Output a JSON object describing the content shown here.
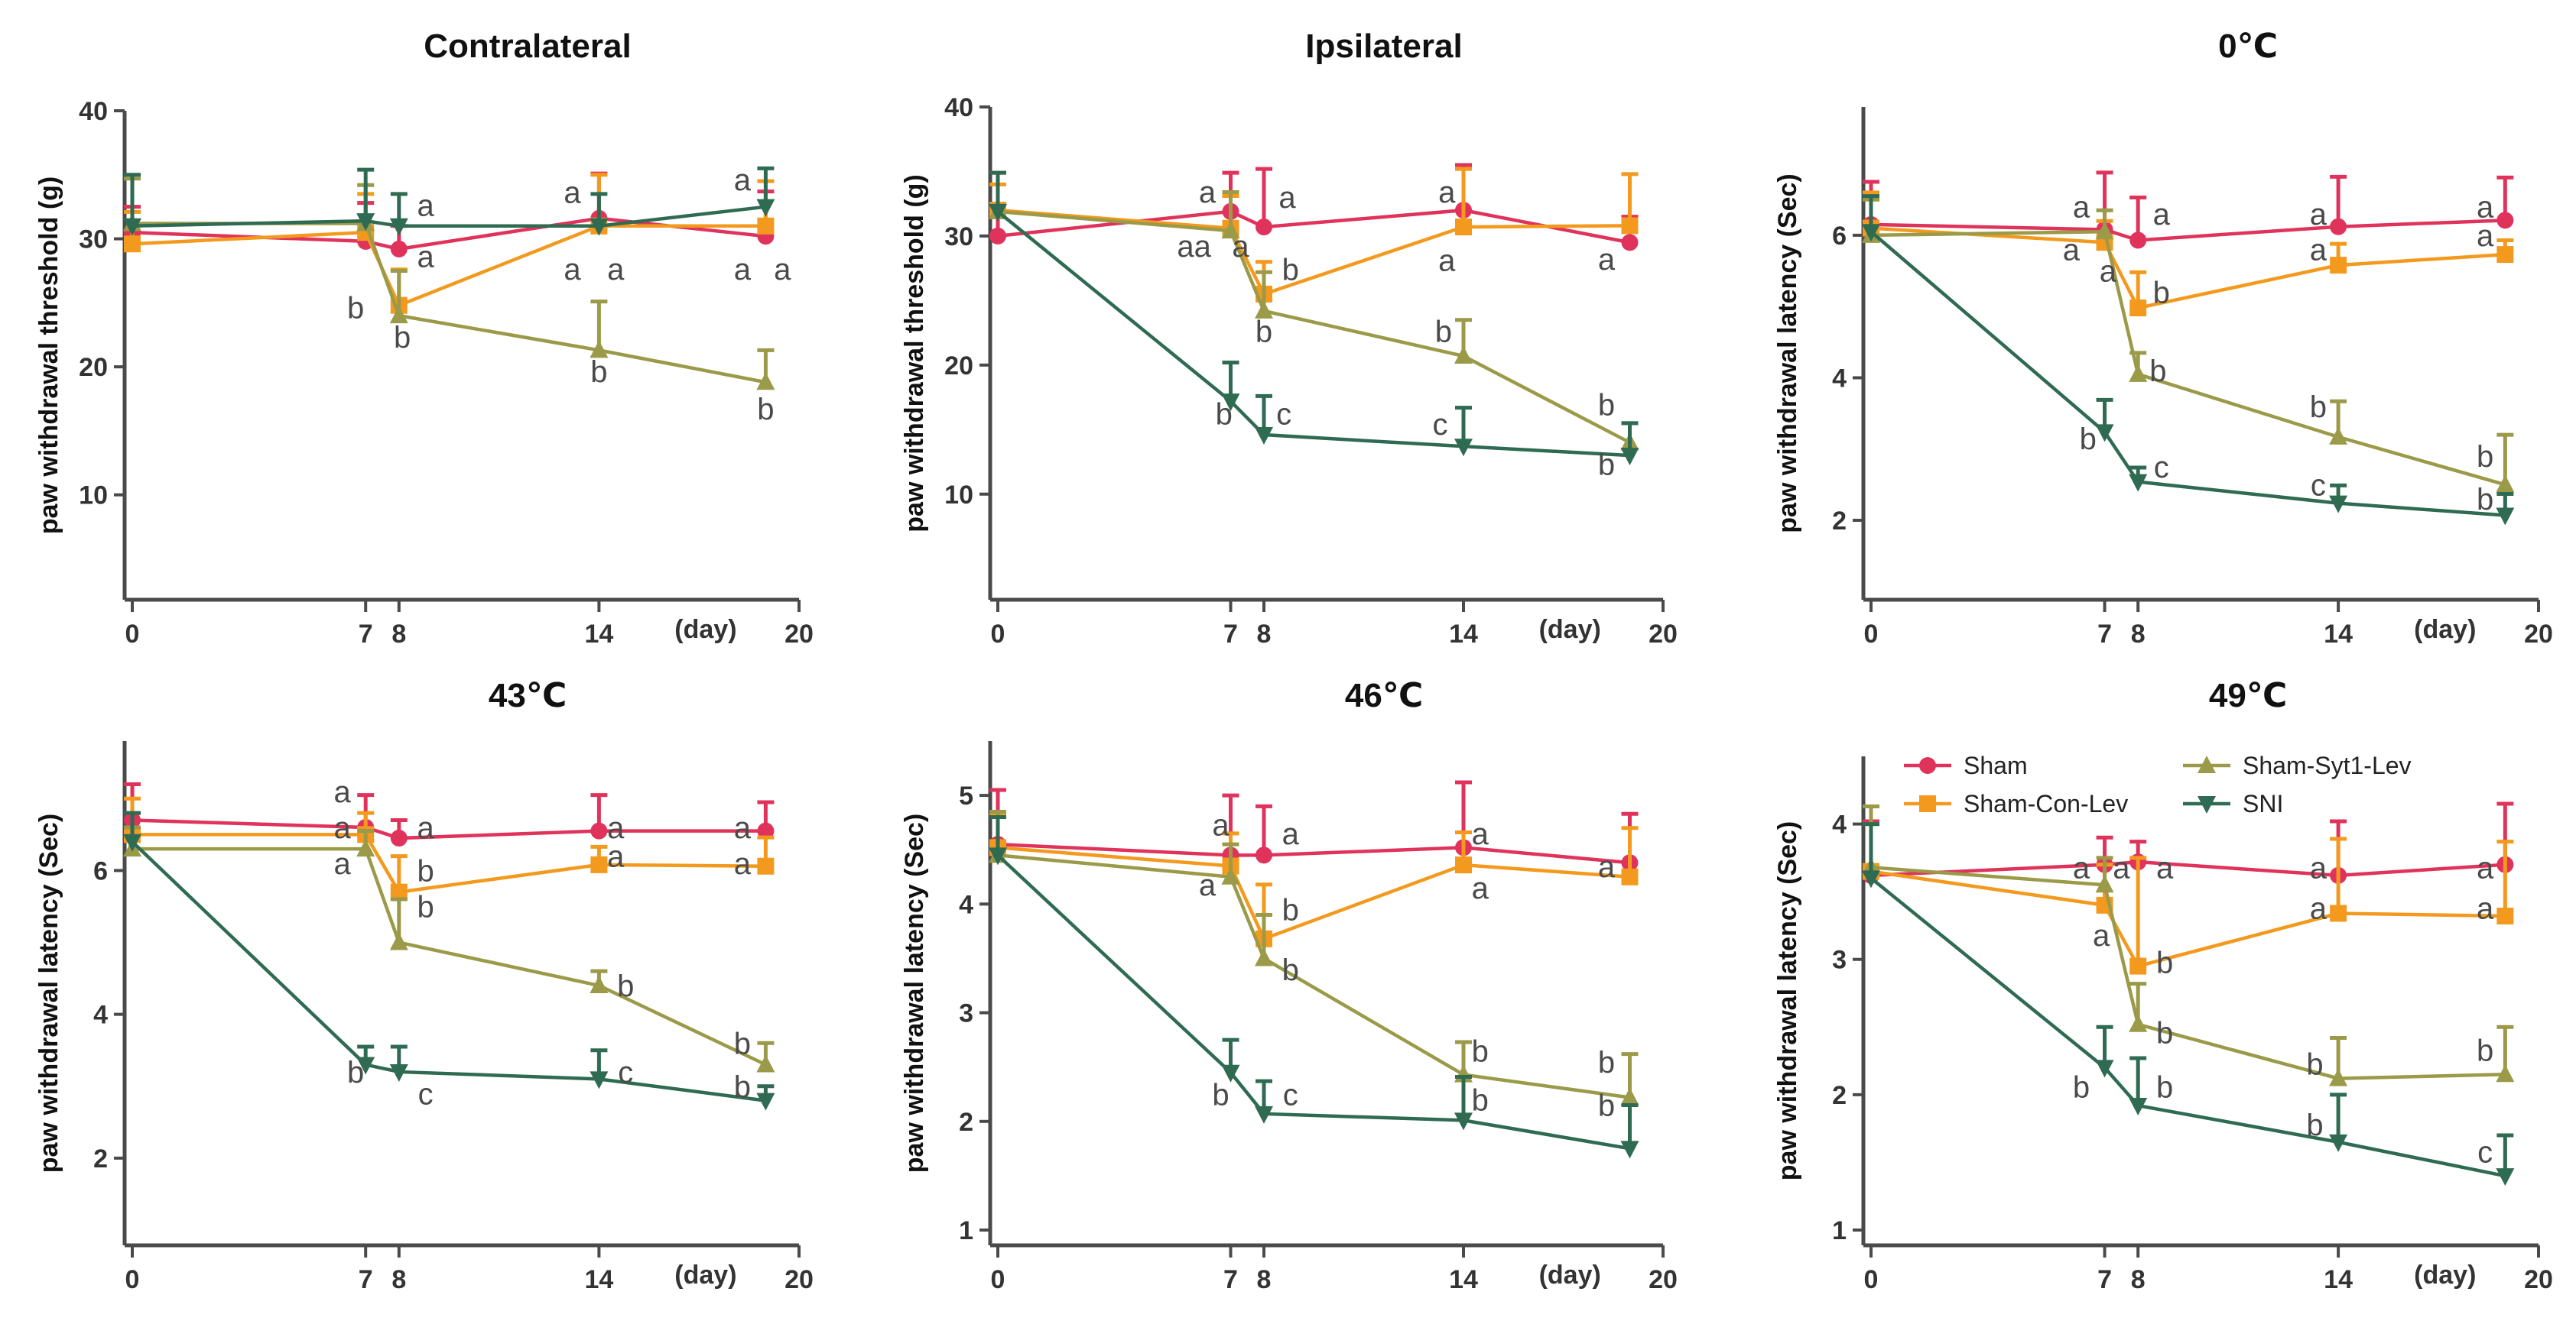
{
  "colors": {
    "Sham": "#E0335B",
    "Sham-Con-Lev": "#F39A1E",
    "Sham-Syt1-Lev": "#9A9A48",
    "SNI": "#2F6B52",
    "axis": "#4a4a4a"
  },
  "legend": [
    "Sham",
    "Sham-Con-Lev",
    "Sham-Syt1-Lev",
    "SNI"
  ],
  "chart_data": [
    {
      "type": "line",
      "title": "Contralateral",
      "ylabel": "paw withdrawal threshold (g)",
      "xlabel": "(day)",
      "x_ticks": [
        0,
        7,
        8,
        14,
        20
      ],
      "xlim": [
        0,
        20
      ],
      "ylim": [
        3,
        40
      ],
      "y_ticks": [
        10,
        20,
        30,
        40
      ],
      "series": [
        {
          "name": "Sham",
          "x": [
            0,
            7,
            8,
            14,
            19
          ],
          "values": [
            30.5,
            29.8,
            29.2,
            31.6,
            30.2
          ],
          "err": [
            2.0,
            3.0,
            1.8,
            3.5,
            3.5
          ]
        },
        {
          "name": "Sham-Con-Lev",
          "x": [
            0,
            7,
            8,
            14,
            19
          ],
          "values": [
            29.6,
            30.5,
            24.8,
            31.0,
            31.0
          ],
          "err": [
            2.5,
            3.0,
            2.8,
            4.0,
            3.5
          ]
        },
        {
          "name": "Sham-Syt1-Lev",
          "x": [
            0,
            7,
            8,
            14,
            19
          ],
          "values": [
            31.2,
            31.2,
            24.0,
            21.3,
            18.8
          ],
          "err": [
            3.5,
            3.0,
            3.5,
            3.8,
            2.5
          ]
        },
        {
          "name": "SNI",
          "x": [
            0,
            7,
            8,
            14,
            19
          ],
          "values": [
            31.0,
            31.4,
            31.0,
            31.0,
            32.5
          ],
          "err": [
            4.0,
            4.0,
            2.5,
            2.5,
            3.0
          ]
        }
      ],
      "annotations": [
        {
          "text": "a",
          "x": 8.8,
          "y": 31.8
        },
        {
          "text": "a",
          "x": 8.8,
          "y": 27.8
        },
        {
          "text": "b",
          "x": 6.7,
          "y": 23.8
        },
        {
          "text": "b",
          "x": 8.1,
          "y": 21.5
        },
        {
          "text": "a",
          "x": 13.2,
          "y": 32.8
        },
        {
          "text": "a",
          "x": 13.2,
          "y": 26.8
        },
        {
          "text": "a",
          "x": 14.5,
          "y": 26.8
        },
        {
          "text": "b",
          "x": 14.0,
          "y": 18.8
        },
        {
          "text": "a",
          "x": 18.3,
          "y": 33.8
        },
        {
          "text": "a",
          "x": 18.3,
          "y": 26.8
        },
        {
          "text": "a",
          "x": 19.5,
          "y": 26.8
        },
        {
          "text": "b",
          "x": 19.0,
          "y": 15.9
        }
      ]
    },
    {
      "type": "line",
      "title": "Ipsilateral",
      "ylabel": "paw withdrawal threshold (g)",
      "xlabel": "(day)",
      "x_ticks": [
        0,
        7,
        8,
        14,
        20
      ],
      "xlim": [
        0,
        20
      ],
      "ylim": [
        3,
        40
      ],
      "y_ticks": [
        10,
        20,
        30,
        40
      ],
      "series": [
        {
          "name": "Sham",
          "x": [
            0,
            7,
            8,
            14,
            19
          ],
          "values": [
            30.0,
            31.9,
            30.7,
            32.0,
            29.5
          ],
          "err": [
            2.5,
            3.0,
            4.5,
            3.5,
            2.0
          ]
        },
        {
          "name": "Sham-Con-Lev",
          "x": [
            0,
            7,
            8,
            14,
            19
          ],
          "values": [
            32.0,
            30.6,
            25.5,
            30.7,
            30.8
          ],
          "err": [
            2.0,
            2.5,
            2.5,
            4.5,
            4.0
          ]
        },
        {
          "name": "Sham-Syt1-Lev",
          "x": [
            0,
            7,
            8,
            14,
            19
          ],
          "values": [
            31.9,
            30.4,
            24.2,
            20.7,
            14.0
          ],
          "err": [
            3.0,
            3.0,
            3.0,
            2.8,
            1.5
          ]
        },
        {
          "name": "SNI",
          "x": [
            0,
            7,
            8,
            14,
            19
          ],
          "values": [
            31.9,
            17.2,
            14.6,
            13.7,
            13.0
          ],
          "err": [
            3.0,
            3.0,
            3.0,
            3.0,
            2.5
          ]
        }
      ],
      "annotations": [
        {
          "text": "a",
          "x": 6.3,
          "y": 32.6
        },
        {
          "text": "aa",
          "x": 5.9,
          "y": 28.4
        },
        {
          "text": "a",
          "x": 7.3,
          "y": 28.4
        },
        {
          "text": "a",
          "x": 8.7,
          "y": 32.2
        },
        {
          "text": "b",
          "x": 8.8,
          "y": 26.6
        },
        {
          "text": "b",
          "x": 8.0,
          "y": 21.8
        },
        {
          "text": "a",
          "x": 13.5,
          "y": 32.6
        },
        {
          "text": "a",
          "x": 13.5,
          "y": 27.3
        },
        {
          "text": "b",
          "x": 13.4,
          "y": 21.8
        },
        {
          "text": "c",
          "x": 13.3,
          "y": 14.6
        },
        {
          "text": "a",
          "x": 18.3,
          "y": 27.4
        },
        {
          "text": "b",
          "x": 18.3,
          "y": 16.1
        },
        {
          "text": "b",
          "x": 18.3,
          "y": 11.5
        },
        {
          "text": "b",
          "x": 6.8,
          "y": 15.4
        },
        {
          "text": "c",
          "x": 8.6,
          "y": 15.4
        }
      ]
    },
    {
      "type": "line",
      "title": "0℃",
      "ylabel": "paw withdrawal latency (Sec)",
      "xlabel": "(day)",
      "x_ticks": [
        0,
        7,
        8,
        14,
        20
      ],
      "xlim": [
        0,
        20
      ],
      "ylim": [
        1.1,
        7.8
      ],
      "y_ticks": [
        2,
        4,
        6
      ],
      "series": [
        {
          "name": "Sham",
          "x": [
            0,
            7,
            8,
            14,
            19
          ],
          "values": [
            6.15,
            6.08,
            5.93,
            6.12,
            6.21
          ],
          "err": [
            0.6,
            0.8,
            0.6,
            0.7,
            0.6
          ]
        },
        {
          "name": "Sham-Con-Lev",
          "x": [
            0,
            7,
            8,
            14,
            19
          ],
          "values": [
            6.1,
            5.9,
            4.98,
            5.58,
            5.73
          ],
          "err": [
            0.5,
            0.3,
            0.5,
            0.3,
            0.2
          ]
        },
        {
          "name": "Sham-Syt1-Lev",
          "x": [
            0,
            7,
            8,
            14,
            19
          ],
          "values": [
            6.0,
            6.05,
            4.05,
            3.17,
            2.5
          ],
          "err": [
            0.5,
            0.3,
            0.3,
            0.5,
            0.7
          ]
        },
        {
          "name": "SNI",
          "x": [
            0,
            7,
            8,
            14,
            19
          ],
          "values": [
            6.05,
            3.24,
            2.54,
            2.24,
            2.07
          ],
          "err": [
            0.5,
            0.45,
            0.2,
            0.25,
            0.3
          ]
        }
      ],
      "annotations": [
        {
          "text": "a",
          "x": 6.3,
          "y": 6.25
        },
        {
          "text": "a",
          "x": 6.0,
          "y": 5.65
        },
        {
          "text": "a",
          "x": 7.1,
          "y": 5.35
        },
        {
          "text": "a",
          "x": 8.7,
          "y": 6.15
        },
        {
          "text": "b",
          "x": 8.7,
          "y": 5.05
        },
        {
          "text": "b",
          "x": 8.6,
          "y": 3.95
        },
        {
          "text": "a",
          "x": 13.4,
          "y": 6.15
        },
        {
          "text": "a",
          "x": 13.4,
          "y": 5.65
        },
        {
          "text": "b",
          "x": 13.4,
          "y": 3.45
        },
        {
          "text": "c",
          "x": 13.4,
          "y": 2.35
        },
        {
          "text": "a",
          "x": 18.4,
          "y": 6.25
        },
        {
          "text": "a",
          "x": 18.4,
          "y": 5.85
        },
        {
          "text": "b",
          "x": 18.4,
          "y": 2.75
        },
        {
          "text": "b",
          "x": 18.4,
          "y": 2.15
        },
        {
          "text": "b",
          "x": 6.5,
          "y": 3.0
        },
        {
          "text": "c",
          "x": 8.7,
          "y": 2.6
        }
      ]
    },
    {
      "type": "line",
      "title": "43℃",
      "ylabel": "paw withdrawal latency (Sec)",
      "xlabel": "(day)",
      "x_ticks": [
        0,
        7,
        8,
        14,
        20
      ],
      "xlim": [
        0,
        20
      ],
      "ylim": [
        1,
        7.8
      ],
      "y_ticks": [
        2,
        4,
        6
      ],
      "series": [
        {
          "name": "Sham",
          "x": [
            0,
            7,
            8,
            14,
            19
          ],
          "values": [
            6.7,
            6.6,
            6.45,
            6.55,
            6.55
          ],
          "err": [
            0.5,
            0.45,
            0.25,
            0.5,
            0.4
          ]
        },
        {
          "name": "Sham-Con-Lev",
          "x": [
            0,
            7,
            8,
            14,
            19
          ],
          "values": [
            6.5,
            6.5,
            5.7,
            6.08,
            6.06
          ],
          "err": [
            0.5,
            0.3,
            0.5,
            0.25,
            0.4
          ]
        },
        {
          "name": "Sham-Syt1-Lev",
          "x": [
            0,
            7,
            8,
            14,
            19
          ],
          "values": [
            6.3,
            6.3,
            5.0,
            4.4,
            3.3
          ],
          "err": [
            0.3,
            0.25,
            0.6,
            0.2,
            0.3
          ]
        },
        {
          "name": "SNI",
          "x": [
            0,
            7,
            8,
            14,
            19
          ],
          "values": [
            6.4,
            3.3,
            3.2,
            3.1,
            2.8
          ],
          "err": [
            0.4,
            0.25,
            0.35,
            0.4,
            0.2
          ]
        }
      ],
      "annotations": [
        {
          "text": "a",
          "x": 6.3,
          "y": 6.95
        },
        {
          "text": "a",
          "x": 6.3,
          "y": 6.45
        },
        {
          "text": "a",
          "x": 6.3,
          "y": 5.95
        },
        {
          "text": "a",
          "x": 8.8,
          "y": 6.45
        },
        {
          "text": "b",
          "x": 8.8,
          "y": 5.85
        },
        {
          "text": "b",
          "x": 8.8,
          "y": 5.35
        },
        {
          "text": "a",
          "x": 14.5,
          "y": 6.45
        },
        {
          "text": "a",
          "x": 14.5,
          "y": 6.05
        },
        {
          "text": "b",
          "x": 14.8,
          "y": 4.25
        },
        {
          "text": "c",
          "x": 14.8,
          "y": 3.05
        },
        {
          "text": "a",
          "x": 18.3,
          "y": 6.45
        },
        {
          "text": "a",
          "x": 18.3,
          "y": 5.95
        },
        {
          "text": "b",
          "x": 18.3,
          "y": 3.45
        },
        {
          "text": "b",
          "x": 18.3,
          "y": 2.85
        },
        {
          "text": "b",
          "x": 6.7,
          "y": 3.05
        },
        {
          "text": "c",
          "x": 8.8,
          "y": 2.75
        }
      ]
    },
    {
      "type": "line",
      "title": "46℃",
      "ylabel": "paw withdrawal latency (Sec)",
      "xlabel": "(day)",
      "x_ticks": [
        0,
        7,
        8,
        14,
        20
      ],
      "xlim": [
        0,
        20
      ],
      "ylim": [
        1,
        5.5
      ],
      "y_ticks": [
        1,
        2,
        3,
        4,
        5
      ],
      "series": [
        {
          "name": "Sham",
          "x": [
            0,
            7,
            8,
            14,
            19
          ],
          "values": [
            4.55,
            4.45,
            4.45,
            4.52,
            4.38
          ],
          "err": [
            0.5,
            0.55,
            0.45,
            0.6,
            0.45
          ]
        },
        {
          "name": "Sham-Con-Lev",
          "x": [
            0,
            7,
            8,
            14,
            19
          ],
          "values": [
            4.52,
            4.35,
            3.68,
            4.36,
            4.25
          ],
          "err": [
            0.3,
            0.3,
            0.5,
            0.3,
            0.45
          ]
        },
        {
          "name": "Sham-Syt1-Lev",
          "x": [
            0,
            7,
            8,
            14,
            19
          ],
          "values": [
            4.45,
            4.25,
            3.5,
            2.43,
            2.22
          ],
          "err": [
            0.4,
            0.3,
            0.4,
            0.3,
            0.4
          ]
        },
        {
          "name": "SNI",
          "x": [
            0,
            7,
            8,
            14,
            19
          ],
          "values": [
            4.45,
            2.45,
            2.07,
            2.01,
            1.75
          ],
          "err": [
            0.35,
            0.3,
            0.3,
            0.4,
            0.4
          ]
        }
      ],
      "annotations": [
        {
          "text": "a",
          "x": 6.7,
          "y": 4.63
        },
        {
          "text": "a",
          "x": 6.3,
          "y": 4.08
        },
        {
          "text": "a",
          "x": 8.8,
          "y": 4.55
        },
        {
          "text": "b",
          "x": 8.8,
          "y": 3.85
        },
        {
          "text": "b",
          "x": 8.8,
          "y": 3.3
        },
        {
          "text": "a",
          "x": 14.5,
          "y": 4.55
        },
        {
          "text": "a",
          "x": 14.5,
          "y": 4.05
        },
        {
          "text": "b",
          "x": 14.5,
          "y": 2.55
        },
        {
          "text": "b",
          "x": 14.5,
          "y": 2.1
        },
        {
          "text": "a",
          "x": 18.3,
          "y": 4.25
        },
        {
          "text": "b",
          "x": 18.3,
          "y": 2.45
        },
        {
          "text": "b",
          "x": 18.3,
          "y": 2.05
        },
        {
          "text": "b",
          "x": 6.7,
          "y": 2.15
        },
        {
          "text": "c",
          "x": 8.8,
          "y": 2.15
        }
      ]
    },
    {
      "type": "line",
      "title": "49℃",
      "ylabel": "paw withdrawal latency (Sec)",
      "xlabel": "(day)",
      "x_ticks": [
        0,
        7,
        8,
        14,
        20
      ],
      "xlim": [
        0,
        20
      ],
      "ylim": [
        1,
        4.5
      ],
      "y_ticks": [
        1,
        2,
        3,
        4
      ],
      "series": [
        {
          "name": "Sham",
          "x": [
            0,
            7,
            8,
            14,
            19
          ],
          "values": [
            3.62,
            3.7,
            3.72,
            3.62,
            3.7
          ],
          "err": [
            0.4,
            0.2,
            0.15,
            0.4,
            0.45
          ]
        },
        {
          "name": "Sham-Con-Lev",
          "x": [
            0,
            7,
            8,
            14,
            19
          ],
          "values": [
            3.65,
            3.4,
            2.95,
            3.34,
            3.32
          ],
          "err": [
            0.35,
            0.3,
            0.8,
            0.55,
            0.55
          ]
        },
        {
          "name": "Sham-Syt1-Lev",
          "x": [
            0,
            7,
            8,
            14,
            19
          ],
          "values": [
            3.68,
            3.55,
            2.52,
            2.12,
            2.15
          ],
          "err": [
            0.45,
            0.2,
            0.3,
            0.3,
            0.35
          ]
        },
        {
          "name": "SNI",
          "x": [
            0,
            7,
            8,
            14,
            19
          ],
          "values": [
            3.6,
            2.2,
            1.92,
            1.65,
            1.4
          ],
          "err": [
            0.4,
            0.3,
            0.35,
            0.35,
            0.3
          ]
        }
      ],
      "annotations": [
        {
          "text": "a",
          "x": 6.3,
          "y": 3.6
        },
        {
          "text": "a",
          "x": 7.5,
          "y": 3.6
        },
        {
          "text": "a",
          "x": 8.8,
          "y": 3.6
        },
        {
          "text": "a",
          "x": 6.9,
          "y": 3.1
        },
        {
          "text": "b",
          "x": 8.8,
          "y": 2.9
        },
        {
          "text": "b",
          "x": 8.8,
          "y": 2.38
        },
        {
          "text": "a",
          "x": 13.4,
          "y": 3.6
        },
        {
          "text": "a",
          "x": 13.4,
          "y": 3.3
        },
        {
          "text": "b",
          "x": 13.3,
          "y": 2.15
        },
        {
          "text": "b",
          "x": 13.3,
          "y": 1.7
        },
        {
          "text": "a",
          "x": 18.4,
          "y": 3.6
        },
        {
          "text": "a",
          "x": 18.4,
          "y": 3.3
        },
        {
          "text": "b",
          "x": 18.4,
          "y": 2.25
        },
        {
          "text": "c",
          "x": 18.4,
          "y": 1.5
        },
        {
          "text": "b",
          "x": 6.3,
          "y": 1.98
        },
        {
          "text": "b",
          "x": 8.8,
          "y": 1.98
        }
      ]
    }
  ]
}
